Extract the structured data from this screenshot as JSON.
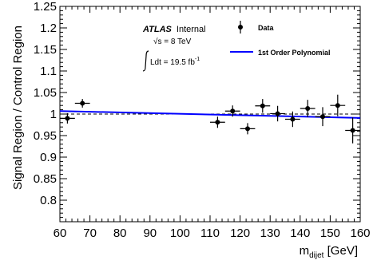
{
  "chart_data": {
    "type": "scatter",
    "xlim": [
      60,
      160
    ],
    "ylim": [
      0.75,
      1.25
    ],
    "x_major_ticks": [
      60,
      70,
      80,
      90,
      100,
      110,
      120,
      130,
      140,
      150,
      160
    ],
    "y_major_ticks": [
      0.8,
      0.85,
      0.9,
      0.95,
      1.0,
      1.05,
      1.1,
      1.15,
      1.2,
      1.25
    ],
    "x_tick_labels": [
      "60",
      "70",
      "80",
      "90",
      "100",
      "110",
      "120",
      "130",
      "140",
      "150",
      "160"
    ],
    "y_tick_labels": [
      "0.8",
      "0.85",
      "0.9",
      "0.95",
      "1",
      "1.05",
      "1.1",
      "1.15",
      "1.2",
      "1.25"
    ],
    "xlabel": {
      "main": "m",
      "sub": "dijet",
      "unit": " [GeV]"
    },
    "ylabel": "Signal Region / Control Region",
    "grid": false,
    "annotation": {
      "experiment": "ATLAS",
      "status": "Internal",
      "energy": "√s = 8 TeV",
      "lumi": "Ldt = 19.5 fb",
      "lumi_exp": "-1"
    },
    "legend_position": "top-right",
    "series": [
      {
        "name": "Data",
        "color": "#000000",
        "points": [
          {
            "x": 62.5,
            "y": 0.99,
            "xerr": 2.5,
            "yerr": 0.012
          },
          {
            "x": 67.5,
            "y": 1.025,
            "xerr": 2.5,
            "yerr": 0.01
          },
          {
            "x": 112.5,
            "y": 0.981,
            "xerr": 2.5,
            "yerr": 0.013
          },
          {
            "x": 117.5,
            "y": 1.007,
            "xerr": 2.5,
            "yerr": 0.013
          },
          {
            "x": 122.5,
            "y": 0.966,
            "xerr": 2.5,
            "yerr": 0.013
          },
          {
            "x": 127.5,
            "y": 1.019,
            "xerr": 2.5,
            "yerr": 0.016
          },
          {
            "x": 132.5,
            "y": 1.001,
            "xerr": 2.5,
            "yerr": 0.018
          },
          {
            "x": 137.5,
            "y": 0.988,
            "xerr": 2.5,
            "yerr": 0.018
          },
          {
            "x": 142.5,
            "y": 1.013,
            "xerr": 2.5,
            "yerr": 0.02
          },
          {
            "x": 147.5,
            "y": 0.994,
            "xerr": 2.5,
            "yerr": 0.022
          },
          {
            "x": 152.5,
            "y": 1.02,
            "xerr": 2.5,
            "yerr": 0.025
          },
          {
            "x": 157.5,
            "y": 0.962,
            "xerr": 2.5,
            "yerr": 0.03
          }
        ]
      },
      {
        "name": "1st Order Polynomial",
        "color": "#0000ff",
        "line": {
          "x": [
            60,
            160
          ],
          "y": [
            1.007,
            0.991
          ]
        }
      }
    ],
    "reference_line": {
      "y": 1.0,
      "color": "#000000",
      "style": "dashed"
    }
  }
}
